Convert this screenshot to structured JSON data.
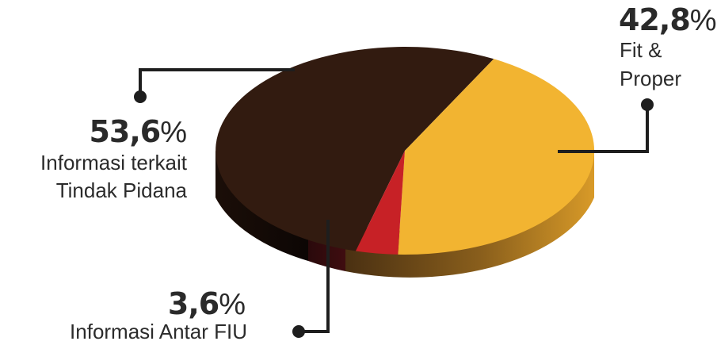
{
  "chart_data": {
    "type": "pie",
    "style": "3d",
    "slices": [
      {
        "label_lines": [
          "Informasi terkait",
          "Tindak Pidana"
        ],
        "value": 53.6,
        "value_text": "53,6",
        "unit": "%",
        "color": "#321b10",
        "side_color": "#1a0d07"
      },
      {
        "label_lines": [
          "Fit &",
          "Proper"
        ],
        "value": 42.8,
        "value_text": "42,8",
        "unit": "%",
        "color": "#f2b431",
        "side_color": "#6a4614"
      },
      {
        "label_lines": [
          "Informasi Antar FIU"
        ],
        "value": 3.6,
        "value_text": "3,6",
        "unit": "%",
        "color": "#c72126",
        "side_color": "#3a0c0c"
      }
    ],
    "leader_line_color": "#1e1e1e"
  }
}
